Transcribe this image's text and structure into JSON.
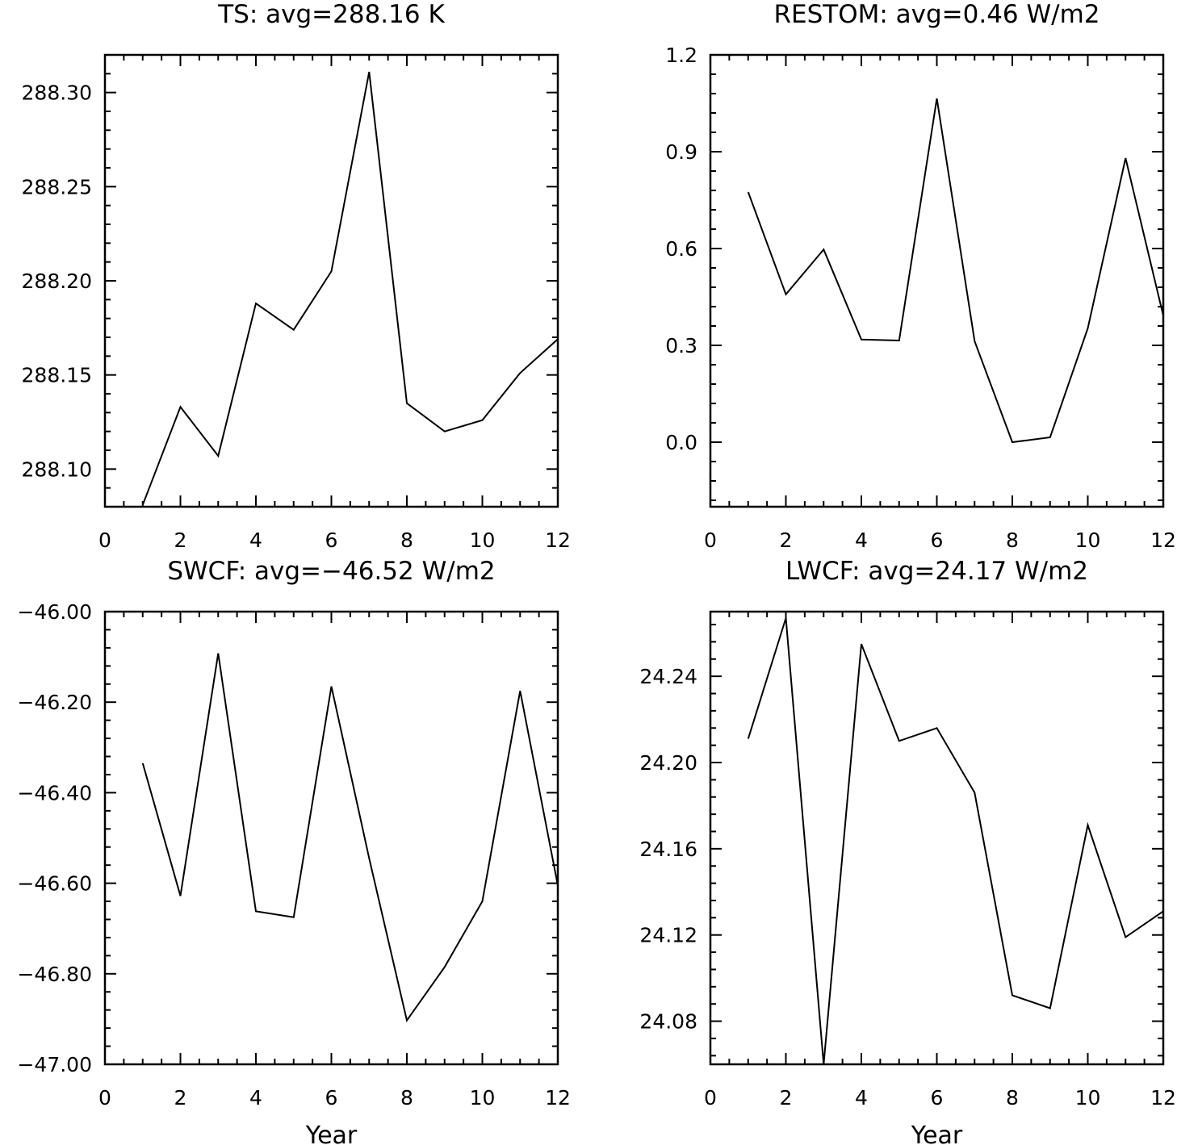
{
  "chart_data": [
    {
      "type": "line",
      "title": "TS: avg=288.16 K",
      "xlabel": "",
      "ylabel": "",
      "x": [
        1,
        2,
        3,
        4,
        5,
        6,
        7,
        8,
        9,
        10,
        11,
        12
      ],
      "series": [
        {
          "values": [
            288.081,
            288.133,
            288.107,
            288.188,
            288.174,
            288.205,
            288.311,
            288.135,
            288.12,
            288.126,
            288.151,
            288.169
          ]
        }
      ],
      "xlim": [
        0,
        12
      ],
      "ylim": [
        288.08,
        288.32
      ],
      "xticks": [
        0,
        2,
        4,
        6,
        8,
        10,
        12
      ],
      "xtick_labels": [
        "0",
        "2",
        "4",
        "6",
        "8",
        "10",
        "12"
      ],
      "yticks": [
        288.1,
        288.15,
        288.2,
        288.25,
        288.3
      ],
      "ytick_labels": [
        "288.10",
        "288.15",
        "288.20",
        "288.25",
        "288.30"
      ],
      "grid": false
    },
    {
      "type": "line",
      "title": "RESTOM: avg=0.46 W/m2",
      "xlabel": "",
      "ylabel": "",
      "x": [
        1,
        2,
        3,
        4,
        5,
        6,
        7,
        8,
        9,
        10,
        11,
        12
      ],
      "series": [
        {
          "values": [
            0.775,
            0.458,
            0.597,
            0.318,
            0.315,
            1.065,
            0.313,
            0.0,
            0.015,
            0.353,
            0.88,
            0.392
          ]
        }
      ],
      "xlim": [
        0,
        12
      ],
      "ylim": [
        -0.2,
        1.2
      ],
      "xticks": [
        0,
        2,
        4,
        6,
        8,
        10,
        12
      ],
      "xtick_labels": [
        "0",
        "2",
        "4",
        "6",
        "8",
        "10",
        "12"
      ],
      "yticks": [
        0.0,
        0.3,
        0.6,
        0.9,
        1.2
      ],
      "ytick_labels": [
        "0.0",
        "0.3",
        "0.6",
        "0.9",
        "1.2"
      ],
      "grid": false
    },
    {
      "type": "line",
      "title": "SWCF: avg=−46.52 W/m2",
      "xlabel": "Year",
      "ylabel": "",
      "x": [
        1,
        2,
        3,
        4,
        5,
        6,
        7,
        8,
        9,
        10,
        11,
        12
      ],
      "series": [
        {
          "values": [
            -46.335,
            -46.628,
            -46.092,
            -46.662,
            -46.675,
            -46.165,
            -46.545,
            -46.903,
            -46.785,
            -46.64,
            -46.175,
            -46.605
          ]
        }
      ],
      "xlim": [
        0,
        12
      ],
      "ylim": [
        -47.0,
        -46.0
      ],
      "xticks": [
        0,
        2,
        4,
        6,
        8,
        10,
        12
      ],
      "xtick_labels": [
        "0",
        "2",
        "4",
        "6",
        "8",
        "10",
        "12"
      ],
      "yticks": [
        -47.0,
        -46.8,
        -46.6,
        -46.4,
        -46.2,
        -46.0
      ],
      "ytick_labels": [
        "−47.00",
        "−46.80",
        "−46.60",
        "−46.40",
        "−46.20",
        "−46.00"
      ],
      "grid": false
    },
    {
      "type": "line",
      "title": "LWCF: avg=24.17 W/m2",
      "xlabel": "Year",
      "ylabel": "",
      "x": [
        1,
        2,
        3,
        4,
        5,
        6,
        7,
        8,
        9,
        10,
        11,
        12
      ],
      "series": [
        {
          "values": [
            24.211,
            24.267,
            24.06,
            24.255,
            24.21,
            24.216,
            24.186,
            24.092,
            24.086,
            24.171,
            24.119,
            24.131
          ]
        }
      ],
      "xlim": [
        0,
        12
      ],
      "ylim": [
        24.06,
        24.27
      ],
      "xticks": [
        0,
        2,
        4,
        6,
        8,
        10,
        12
      ],
      "xtick_labels": [
        "0",
        "2",
        "4",
        "6",
        "8",
        "10",
        "12"
      ],
      "yticks": [
        24.08,
        24.12,
        24.16,
        24.2,
        24.24
      ],
      "ytick_labels": [
        "24.08",
        "24.12",
        "24.16",
        "24.20",
        "24.24"
      ],
      "grid": false
    }
  ]
}
